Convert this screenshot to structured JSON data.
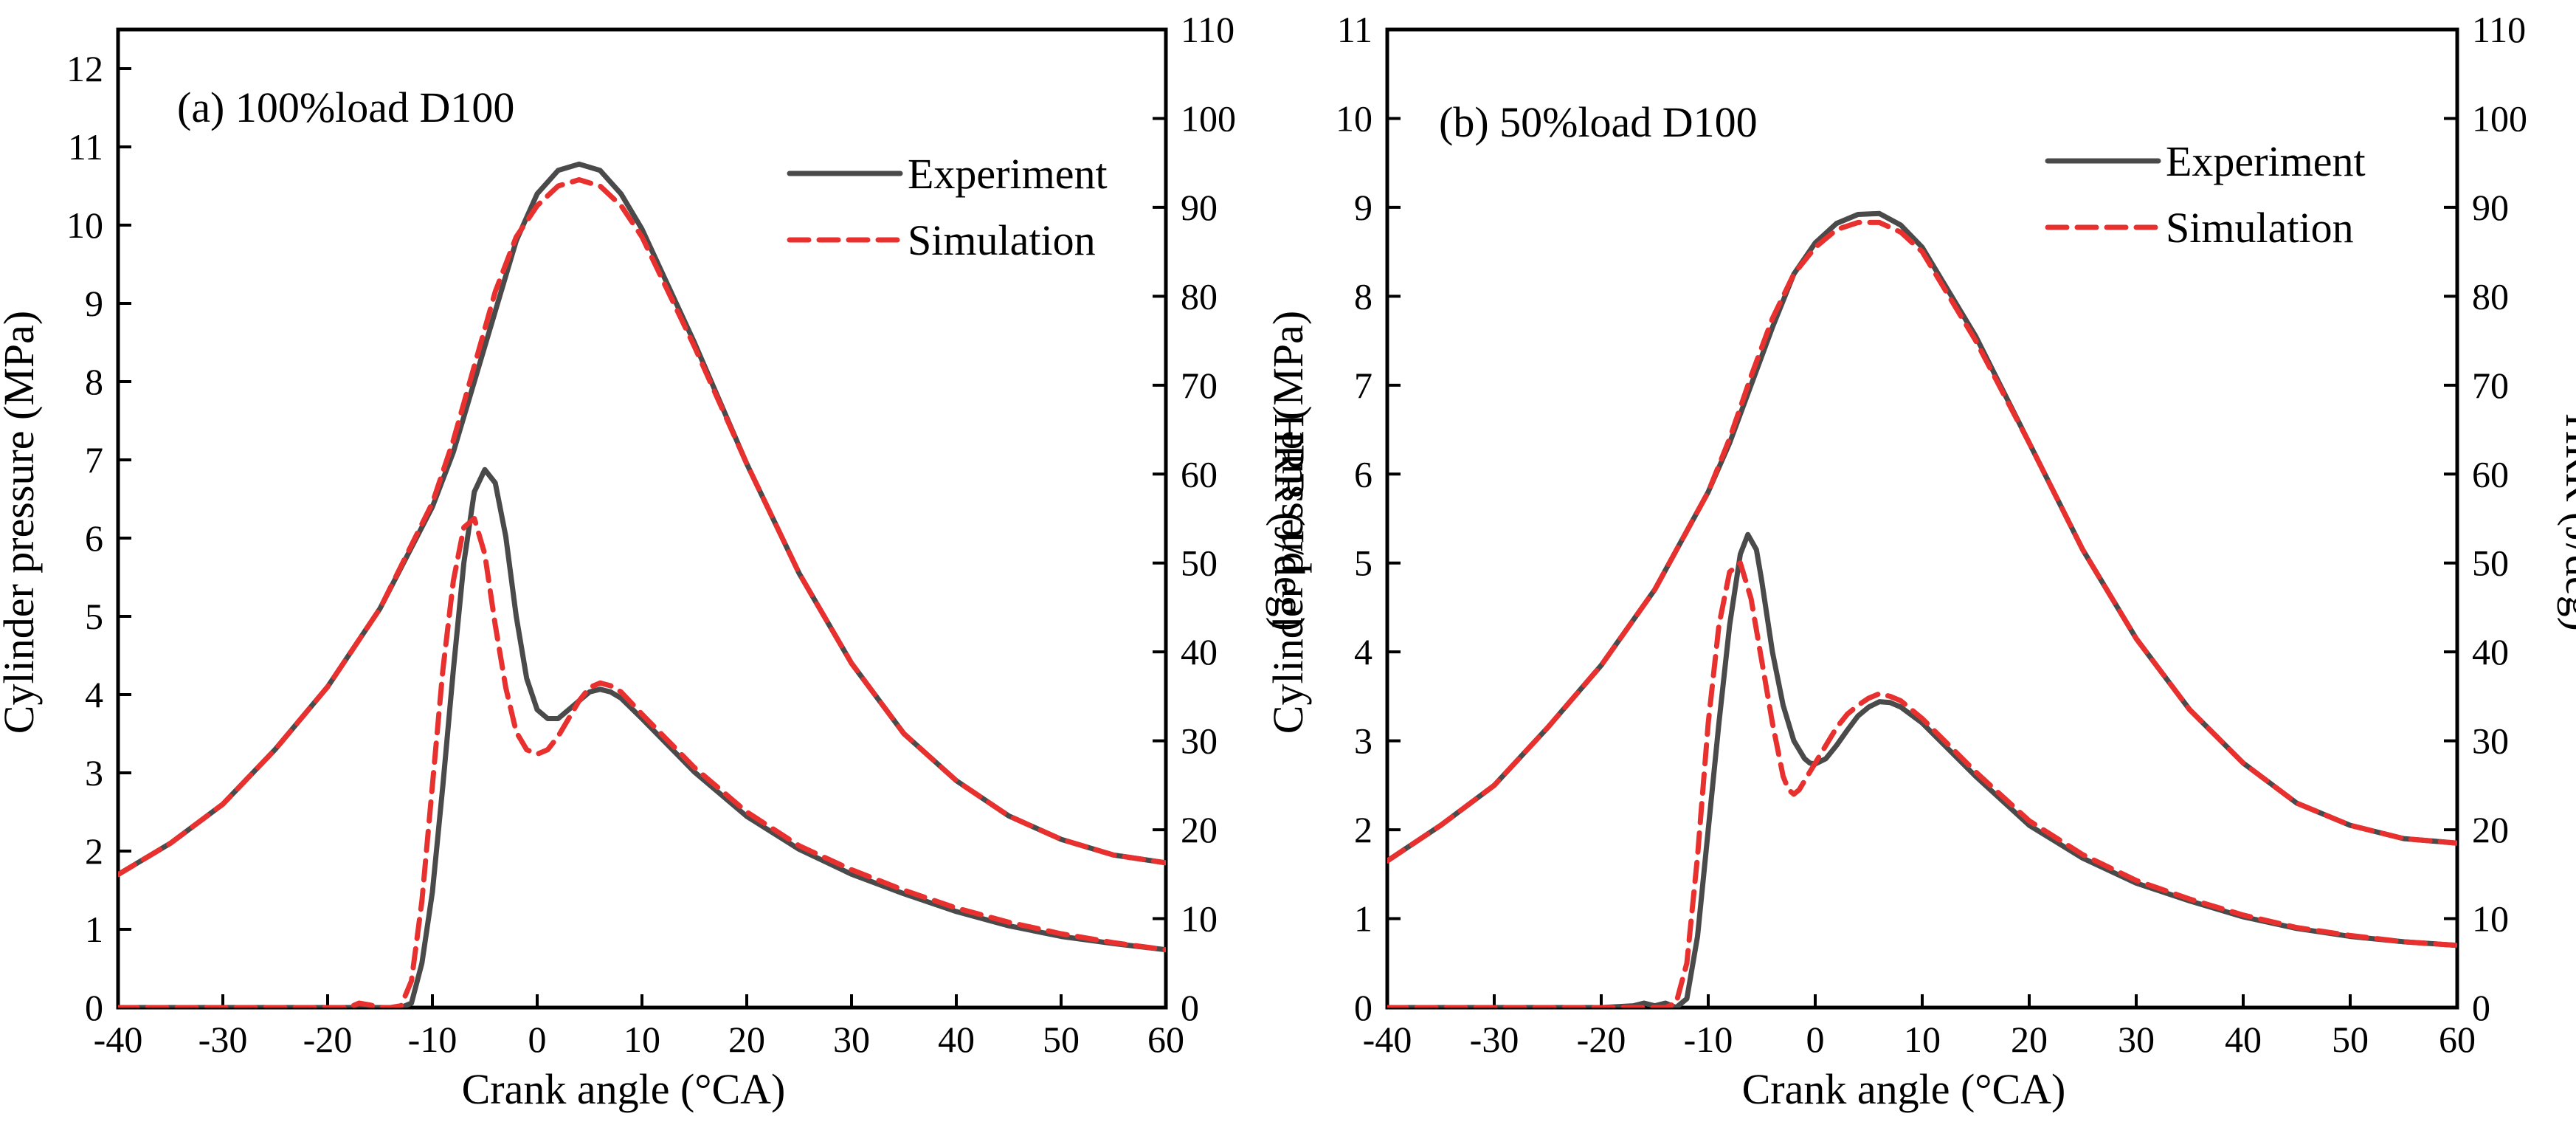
{
  "chart_data": [
    {
      "type": "line",
      "title": "(a) 100%load D100",
      "xlabel": "Crank angle (°CA)",
      "ylabel": "Cylinder pressure (MPa)",
      "y2label": "HRR  (J/deg)",
      "xlim": [
        -40,
        60
      ],
      "ylim": [
        0,
        12.5
      ],
      "y2lim": [
        0,
        110
      ],
      "xticks": [
        -40,
        -30,
        -20,
        -10,
        0,
        10,
        20,
        30,
        40,
        50,
        60
      ],
      "yticks": [
        0,
        1,
        2,
        3,
        4,
        5,
        6,
        7,
        8,
        9,
        10,
        11,
        12
      ],
      "y2ticks": [
        0,
        10,
        20,
        30,
        40,
        50,
        60,
        70,
        80,
        90,
        100,
        110
      ],
      "legend": {
        "position": "top-right",
        "entries": [
          "Experiment",
          "Simulation"
        ]
      },
      "series": [
        {
          "name": "Experiment",
          "quantity": "pressure",
          "axis": "left",
          "color": "#4a4a4a",
          "dash": "solid",
          "x": [
            -40,
            -35,
            -30,
            -25,
            -20,
            -15,
            -10,
            -8,
            -6,
            -4,
            -2,
            0,
            2,
            4,
            6,
            8,
            10,
            15,
            20,
            25,
            30,
            35,
            40,
            45,
            50,
            55,
            60
          ],
          "y": [
            1.7,
            2.1,
            2.6,
            3.3,
            4.1,
            5.1,
            6.4,
            7.1,
            8.0,
            8.9,
            9.8,
            10.4,
            10.7,
            10.78,
            10.7,
            10.4,
            9.95,
            8.5,
            6.95,
            5.55,
            4.4,
            3.5,
            2.9,
            2.45,
            2.15,
            1.95,
            1.85
          ]
        },
        {
          "name": "Simulation",
          "quantity": "pressure",
          "axis": "left",
          "color": "#e8312f",
          "dash": "dashed",
          "x": [
            -40,
            -35,
            -30,
            -25,
            -20,
            -15,
            -10,
            -8,
            -6,
            -4,
            -2,
            0,
            2,
            4,
            6,
            8,
            10,
            15,
            20,
            25,
            30,
            35,
            40,
            45,
            50,
            55,
            60
          ],
          "y": [
            1.7,
            2.1,
            2.6,
            3.3,
            4.1,
            5.1,
            6.45,
            7.25,
            8.2,
            9.15,
            9.85,
            10.25,
            10.5,
            10.58,
            10.5,
            10.25,
            9.85,
            8.45,
            6.95,
            5.55,
            4.4,
            3.5,
            2.9,
            2.45,
            2.15,
            1.95,
            1.85
          ]
        },
        {
          "name": "Experiment",
          "quantity": "HRR",
          "axis": "right",
          "color": "#4a4a4a",
          "dash": "solid",
          "x": [
            -40,
            -20,
            -14,
            -13,
            -12,
            -11,
            -10,
            -9,
            -8,
            -7,
            -6,
            -5,
            -4,
            -3,
            -2,
            -1,
            0,
            1,
            2,
            3,
            4,
            5,
            6,
            7,
            8,
            10,
            15,
            20,
            25,
            30,
            35,
            40,
            45,
            50,
            55,
            60
          ],
          "y": [
            0,
            0,
            0,
            0,
            0.5,
            5,
            13,
            25,
            38,
            50,
            58,
            60.5,
            59,
            53,
            44,
            37,
            33.5,
            32.5,
            32.5,
            33.5,
            34.5,
            35.5,
            35.8,
            35.5,
            34.8,
            32.5,
            26.5,
            21.5,
            17.8,
            15,
            12.8,
            10.8,
            9.2,
            8,
            7.2,
            6.5
          ]
        },
        {
          "name": "Simulation",
          "quantity": "HRR",
          "axis": "right",
          "color": "#e8312f",
          "dash": "dashed",
          "x": [
            -40,
            -20,
            -18,
            -17,
            -16,
            -15,
            -14,
            -13,
            -12,
            -11,
            -10,
            -9,
            -8,
            -7,
            -6,
            -5,
            -4,
            -3,
            -2,
            -1,
            0,
            1,
            2,
            3,
            4,
            5,
            6,
            7,
            8,
            10,
            15,
            20,
            25,
            30,
            35,
            40,
            45,
            50,
            55,
            60
          ],
          "y": [
            0,
            0,
            0,
            0.5,
            0.3,
            0,
            0,
            0.2,
            3,
            12,
            25,
            38,
            48,
            54,
            55,
            51,
            43,
            36,
            31,
            29,
            28.5,
            29,
            30.5,
            32.5,
            34.5,
            36,
            36.5,
            36.2,
            35.5,
            33,
            27,
            22,
            18.2,
            15.5,
            13.2,
            11.2,
            9.6,
            8.3,
            7.3,
            6.5
          ]
        }
      ]
    },
    {
      "type": "line",
      "title": "(b) 50%load D100",
      "xlabel": "Crank angle (°CA)",
      "ylabel": "Cylinder pressure (MPa)",
      "y2label": "HRR  (J/deg)",
      "xlim": [
        -40,
        60
      ],
      "ylim": [
        0,
        11
      ],
      "y2lim": [
        0,
        110
      ],
      "xticks": [
        -40,
        -30,
        -20,
        -10,
        0,
        10,
        20,
        30,
        40,
        50,
        60
      ],
      "yticks": [
        0,
        1,
        2,
        3,
        4,
        5,
        6,
        7,
        8,
        9,
        10,
        11
      ],
      "y2ticks": [
        0,
        10,
        20,
        30,
        40,
        50,
        60,
        70,
        80,
        90,
        100,
        110
      ],
      "legend": {
        "position": "top-right",
        "entries": [
          "Experiment",
          "Simulation"
        ]
      },
      "series": [
        {
          "name": "Experiment",
          "quantity": "pressure",
          "axis": "left",
          "color": "#4a4a4a",
          "dash": "solid",
          "x": [
            -40,
            -35,
            -30,
            -25,
            -20,
            -15,
            -10,
            -8,
            -6,
            -4,
            -2,
            0,
            2,
            4,
            6,
            8,
            10,
            15,
            20,
            25,
            30,
            35,
            40,
            45,
            50,
            55,
            60
          ],
          "y": [
            1.65,
            2.05,
            2.5,
            3.15,
            3.85,
            4.7,
            5.8,
            6.35,
            7.0,
            7.65,
            8.25,
            8.6,
            8.82,
            8.92,
            8.93,
            8.8,
            8.55,
            7.55,
            6.35,
            5.15,
            4.15,
            3.35,
            2.75,
            2.3,
            2.05,
            1.9,
            1.85
          ]
        },
        {
          "name": "Simulation",
          "quantity": "pressure",
          "axis": "left",
          "color": "#e8312f",
          "dash": "dashed",
          "x": [
            -40,
            -35,
            -30,
            -25,
            -20,
            -15,
            -10,
            -8,
            -6,
            -4,
            -2,
            0,
            2,
            4,
            6,
            8,
            10,
            15,
            20,
            25,
            30,
            35,
            40,
            45,
            50,
            55,
            60
          ],
          "y": [
            1.65,
            2.05,
            2.5,
            3.15,
            3.85,
            4.7,
            5.8,
            6.4,
            7.1,
            7.75,
            8.25,
            8.55,
            8.75,
            8.83,
            8.83,
            8.72,
            8.5,
            7.5,
            6.35,
            5.15,
            4.15,
            3.35,
            2.75,
            2.3,
            2.05,
            1.9,
            1.85
          ]
        },
        {
          "name": "Experiment",
          "quantity": "HRR",
          "axis": "right",
          "color": "#4a4a4a",
          "dash": "solid",
          "x": [
            -40,
            -20,
            -17,
            -16,
            -15,
            -14,
            -13,
            -12,
            -11,
            -10,
            -9,
            -8,
            -7,
            -6.3,
            -5.5,
            -5,
            -4,
            -3,
            -2,
            -1,
            -0.5,
            0,
            1,
            2,
            3,
            4,
            5,
            6,
            7,
            8,
            10,
            15,
            20,
            25,
            30,
            35,
            40,
            45,
            50,
            55,
            60
          ],
          "y": [
            0,
            0,
            0.2,
            0.5,
            0.2,
            0.5,
            0,
            1,
            8,
            20,
            32,
            43,
            51,
            53.2,
            51.5,
            48,
            40,
            34,
            30,
            28,
            27.5,
            27.4,
            28,
            29.5,
            31.2,
            32.8,
            33.8,
            34.4,
            34.3,
            33.8,
            32,
            26,
            20.5,
            16.8,
            14,
            12,
            10.2,
            8.9,
            8,
            7.4,
            7
          ]
        },
        {
          "name": "Simulation",
          "quantity": "HRR",
          "axis": "right",
          "color": "#e8312f",
          "dash": "dashed",
          "x": [
            -40,
            -20,
            -14,
            -13,
            -12,
            -11,
            -10,
            -9,
            -8,
            -7,
            -6,
            -5,
            -4,
            -3,
            -2.5,
            -2,
            -1.5,
            -1,
            0,
            1,
            2,
            3,
            4,
            5,
            6,
            7,
            8,
            10,
            15,
            20,
            25,
            30,
            35,
            40,
            45,
            50,
            55,
            60
          ],
          "y": [
            0,
            0,
            0,
            0.5,
            5,
            17,
            32,
            43,
            49,
            50,
            46,
            39,
            32,
            26,
            24.5,
            24,
            24.5,
            25.5,
            27.5,
            29.5,
            31.5,
            33,
            34,
            34.8,
            35.3,
            35,
            34.5,
            32.5,
            26.5,
            21,
            17.2,
            14.3,
            12.2,
            10.4,
            9,
            8.1,
            7.4,
            7
          ]
        }
      ]
    }
  ]
}
